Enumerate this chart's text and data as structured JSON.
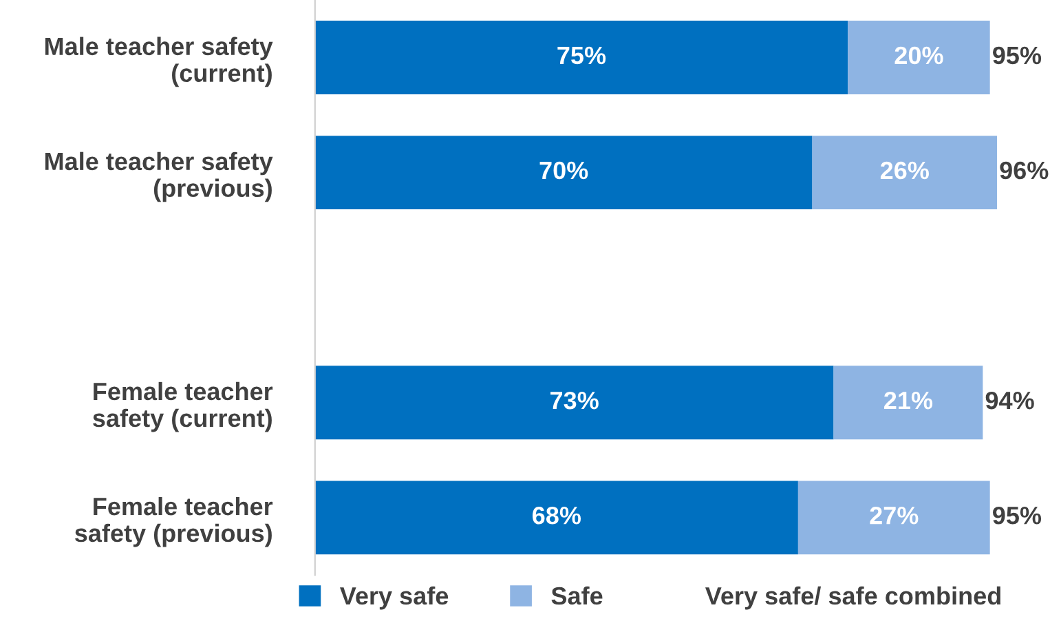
{
  "chart_data": {
    "type": "bar",
    "orientation": "horizontal",
    "stacked": true,
    "legend": "bottom",
    "grid": false,
    "categories": [
      "Male teacher safety\n(current)",
      "Male teacher safety\n(previous)",
      null,
      "Female teacher\nsafety (current)",
      "Female teacher\nsafety (previous)"
    ],
    "series": [
      {
        "name": "Very safe",
        "color": "#0070c0",
        "values": [
          75,
          70,
          null,
          73,
          68
        ],
        "value_labels": [
          "75%",
          "70%",
          null,
          "73%",
          "68%"
        ]
      },
      {
        "name": "Safe",
        "color": "#8eb4e3",
        "values": [
          20,
          26,
          null,
          21,
          27
        ],
        "value_labels": [
          "20%",
          "26%",
          null,
          "21%",
          "27%"
        ]
      }
    ],
    "totals": [
      "95%",
      "96%",
      null,
      "94%",
      "95%"
    ],
    "annotations": [
      "Very safe/ safe combined"
    ]
  }
}
